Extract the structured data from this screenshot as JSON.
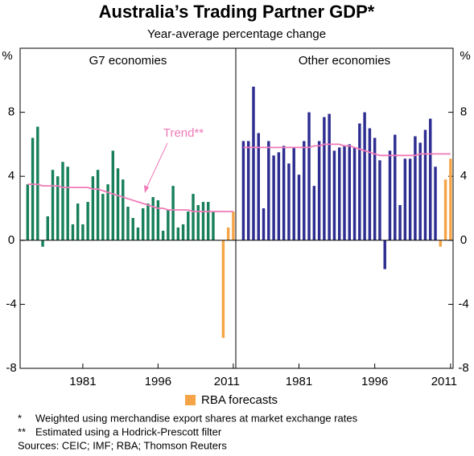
{
  "chart_data": {
    "type": "bar",
    "title": "Australia’s Trading Partner GDP*",
    "subtitle": "Year-average percentage change",
    "y_unit": "%",
    "ylim": [
      -8,
      12
    ],
    "yticks": [
      -8,
      -4,
      0,
      4,
      8
    ],
    "panels": [
      {
        "title": "G7 economies",
        "xlim": [
          1968.5,
          2011.5
        ],
        "xticks": [
          1981,
          1996,
          2011
        ],
        "x": [
          1970,
          1971,
          1972,
          1973,
          1974,
          1975,
          1976,
          1977,
          1978,
          1979,
          1980,
          1981,
          1982,
          1983,
          1984,
          1985,
          1986,
          1987,
          1988,
          1989,
          1990,
          1991,
          1992,
          1993,
          1994,
          1995,
          1996,
          1997,
          1998,
          1999,
          2000,
          2001,
          2002,
          2003,
          2004,
          2005,
          2006,
          2007,
          2008,
          2009,
          2010,
          2011
        ],
        "series": [
          {
            "color": "#17805a",
            "values": [
              3.5,
              6.4,
              7.1,
              -0.4,
              1.5,
              4.4,
              4.0,
              4.9,
              4.6,
              1.0,
              2.3,
              1.0,
              2.4,
              4.0,
              4.4,
              2.9,
              3.5,
              5.6,
              4.5,
              3.8,
              2.1,
              1.4,
              0.8,
              2.0,
              2.3,
              2.7,
              2.5,
              0.6,
              1.9,
              3.4,
              0.8,
              1.0,
              1.8,
              2.9,
              2.2,
              2.4,
              2.4,
              1.8,
              0.0,
              null,
              null,
              null
            ]
          },
          {
            "name": "RBA forecasts",
            "color": "#f5a447",
            "values": [
              null,
              null,
              null,
              null,
              null,
              null,
              null,
              null,
              null,
              null,
              null,
              null,
              null,
              null,
              null,
              null,
              null,
              null,
              null,
              null,
              null,
              null,
              null,
              null,
              null,
              null,
              null,
              null,
              null,
              null,
              null,
              null,
              null,
              null,
              null,
              null,
              null,
              null,
              null,
              -6.1,
              0.8,
              1.8
            ]
          }
        ],
        "trend": {
          "label": "Trend**",
          "color": "#f07ab8",
          "values": [
            3.5,
            3.5,
            3.5,
            3.4,
            3.4,
            3.4,
            3.4,
            3.3,
            3.3,
            3.3,
            3.3,
            3.3,
            3.3,
            3.2,
            3.2,
            3.1,
            3.0,
            2.9,
            2.8,
            2.7,
            2.6,
            2.5,
            2.4,
            2.3,
            2.2,
            2.1,
            2.0,
            2.0,
            1.9,
            1.9,
            1.9,
            1.9,
            1.9,
            1.8,
            1.8,
            1.8,
            1.8,
            1.8,
            1.8,
            1.8,
            1.8,
            1.8
          ]
        }
      },
      {
        "title": "Other economies",
        "xlim": [
          1968.5,
          2011.5
        ],
        "xticks": [
          1981,
          1996,
          2011
        ],
        "x": [
          1970,
          1971,
          1972,
          1973,
          1974,
          1975,
          1976,
          1977,
          1978,
          1979,
          1980,
          1981,
          1982,
          1983,
          1984,
          1985,
          1986,
          1987,
          1988,
          1989,
          1990,
          1991,
          1992,
          1993,
          1994,
          1995,
          1996,
          1997,
          1998,
          1999,
          2000,
          2001,
          2002,
          2003,
          2004,
          2005,
          2006,
          2007,
          2008,
          2009,
          2010,
          2011
        ],
        "series": [
          {
            "color": "#2e2e92",
            "values": [
              6.2,
              6.2,
              9.6,
              6.7,
              2.0,
              6.2,
              5.3,
              5.5,
              5.9,
              4.8,
              5.8,
              4.1,
              6.2,
              8.0,
              3.4,
              6.2,
              7.7,
              7.9,
              5.6,
              5.8,
              5.9,
              6.0,
              5.8,
              7.3,
              8.0,
              7.0,
              6.4,
              5.0,
              -1.8,
              5.6,
              6.6,
              2.2,
              5.1,
              5.1,
              6.5,
              6.1,
              6.9,
              7.6,
              4.6,
              null,
              null,
              null
            ]
          },
          {
            "color": "#f5a447",
            "values": [
              null,
              null,
              null,
              null,
              null,
              null,
              null,
              null,
              null,
              null,
              null,
              null,
              null,
              null,
              null,
              null,
              null,
              null,
              null,
              null,
              null,
              null,
              null,
              null,
              null,
              null,
              null,
              null,
              null,
              null,
              null,
              null,
              null,
              null,
              null,
              null,
              null,
              null,
              null,
              -0.4,
              3.8,
              5.1
            ]
          }
        ],
        "trend": {
          "color": "#f07ab8",
          "values": [
            5.8,
            5.8,
            5.8,
            5.8,
            5.8,
            5.8,
            5.8,
            5.8,
            5.8,
            5.8,
            5.8,
            5.8,
            5.8,
            5.8,
            5.9,
            5.9,
            6.0,
            6.0,
            6.0,
            6.0,
            5.9,
            5.9,
            5.8,
            5.7,
            5.6,
            5.5,
            5.4,
            5.3,
            5.3,
            5.3,
            5.3,
            5.3,
            5.3,
            5.3,
            5.3,
            5.4,
            5.4,
            5.4,
            5.4,
            5.4,
            5.4,
            5.4
          ]
        }
      }
    ],
    "notes": [
      {
        "mark": "*",
        "text": "Weighted using merchandise export shares at market exchange rates"
      },
      {
        "mark": "**",
        "text": "Estimated using a Hodrick-Prescott filter"
      }
    ],
    "sources": "Sources: CEIC; IMF; RBA; Thomson Reuters"
  }
}
